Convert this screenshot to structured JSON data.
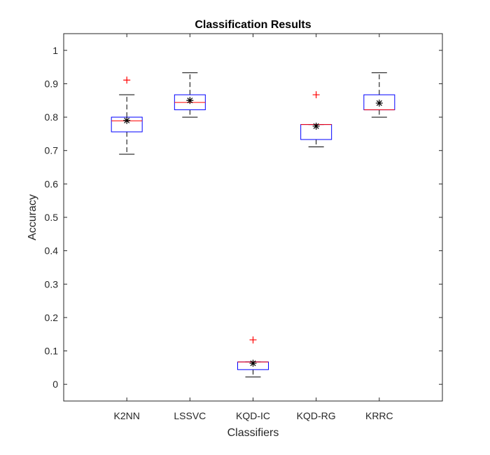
{
  "chart_data": {
    "type": "box",
    "title": "Classification Results",
    "xlabel": "Classifiers",
    "ylabel": "Accuracy",
    "ylim": [
      -0.05,
      1.05
    ],
    "yticks": [
      0,
      0.1,
      0.2,
      0.3,
      0.4,
      0.5,
      0.6,
      0.7,
      0.8,
      0.9,
      1
    ],
    "ytick_labels": [
      "0",
      "0.1",
      "0.2",
      "0.3",
      "0.4",
      "0.5",
      "0.6",
      "0.7",
      "0.8",
      "0.9",
      "1"
    ],
    "categories": [
      "K2NN",
      "LSSVC",
      "KQD-IC",
      "KQD-RG",
      "KRRC"
    ],
    "boxes": [
      {
        "name": "K2NN",
        "whisker_low": 0.689,
        "q1": 0.756,
        "median": 0.789,
        "q3": 0.8,
        "whisker_high": 0.867,
        "mean": 0.79,
        "outliers": [
          0.911
        ]
      },
      {
        "name": "LSSVC",
        "whisker_low": 0.8,
        "q1": 0.822,
        "median": 0.844,
        "q3": 0.867,
        "whisker_high": 0.933,
        "mean": 0.85,
        "outliers": []
      },
      {
        "name": "KQD-IC",
        "whisker_low": 0.022,
        "q1": 0.044,
        "median": 0.067,
        "q3": 0.067,
        "whisker_high": 0.067,
        "mean": 0.063,
        "outliers": [
          0.133
        ]
      },
      {
        "name": "KQD-RG",
        "whisker_low": 0.711,
        "q1": 0.733,
        "median": 0.778,
        "q3": 0.778,
        "whisker_high": 0.778,
        "mean": 0.773,
        "outliers": [
          0.867
        ]
      },
      {
        "name": "KRRC",
        "whisker_low": 0.8,
        "q1": 0.822,
        "median": 0.822,
        "q3": 0.867,
        "whisker_high": 0.933,
        "mean": 0.842,
        "outliers": []
      }
    ],
    "colors": {
      "box": "#0000ff",
      "median": "#ff0000",
      "whisker": "#000000",
      "outlier": "#ff0000",
      "mean": "#000000",
      "axes": "#262626"
    },
    "grid": false,
    "legend": "none"
  }
}
